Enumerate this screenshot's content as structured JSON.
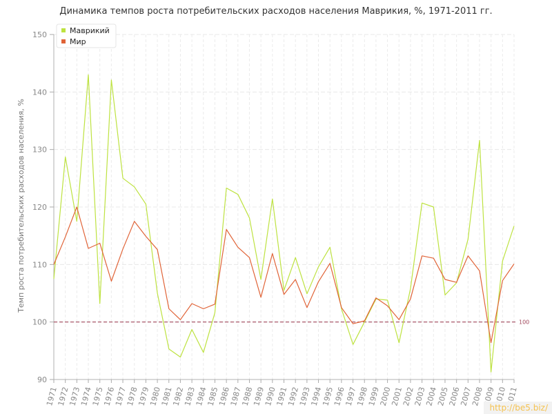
{
  "chart_data": {
    "type": "line",
    "title": "Динамика темпов роста потребительских расходов населения Маврикия, %, 1971-2011 гг.",
    "ylabel": "Темп роста потребительских расходов населения, %",
    "xlabel": "",
    "ylim": [
      90,
      150
    ],
    "yticks": [
      90,
      100,
      110,
      120,
      130,
      140,
      150
    ],
    "grid": true,
    "legend_position": "top-left",
    "categories": [
      "1971",
      "1972",
      "1973",
      "1974",
      "1975",
      "1976",
      "1977",
      "1978",
      "1979",
      "1980",
      "1981",
      "1982",
      "1983",
      "1984",
      "1985",
      "1986",
      "1987",
      "1988",
      "1989",
      "1990",
      "1991",
      "1992",
      "1993",
      "1994",
      "1995",
      "1996",
      "1997",
      "1998",
      "1999",
      "2000",
      "2001",
      "2002",
      "2003",
      "2004",
      "2005",
      "2006",
      "2007",
      "2008",
      "2009",
      "2010",
      "2011"
    ],
    "series": [
      {
        "name": "Маврикий",
        "color": "#bde23f",
        "values": [
          107.5,
          128.7,
          117.5,
          143.0,
          103.2,
          142.1,
          125.0,
          123.5,
          120.5,
          105.0,
          95.3,
          93.9,
          98.7,
          94.7,
          101.6,
          123.3,
          122.2,
          118.1,
          107.4,
          121.4,
          105.5,
          111.2,
          104.9,
          109.6,
          113.0,
          102.3,
          96.1,
          100.0,
          104.0,
          103.8,
          96.4,
          105.8,
          120.7,
          120.0,
          104.7,
          106.8,
          114.4,
          131.6,
          91.3,
          110.6,
          116.7
        ]
      },
      {
        "name": "Мир",
        "color": "#e06337",
        "values": [
          110.0,
          114.8,
          120.0,
          112.8,
          113.7,
          107.1,
          112.7,
          117.5,
          114.9,
          112.6,
          102.3,
          100.4,
          103.2,
          102.3,
          103.1,
          116.1,
          113.0,
          111.2,
          104.3,
          111.9,
          104.8,
          107.4,
          102.5,
          107.0,
          110.2,
          102.5,
          99.7,
          100.2,
          104.2,
          102.8,
          100.4,
          104.0,
          111.5,
          111.1,
          107.4,
          106.9,
          111.5,
          108.9,
          96.4,
          107.2,
          110.1
        ]
      }
    ],
    "reference_line": {
      "value": 100,
      "label": "100",
      "color": "#a0465a"
    }
  },
  "watermark": "http://be5.biz/"
}
